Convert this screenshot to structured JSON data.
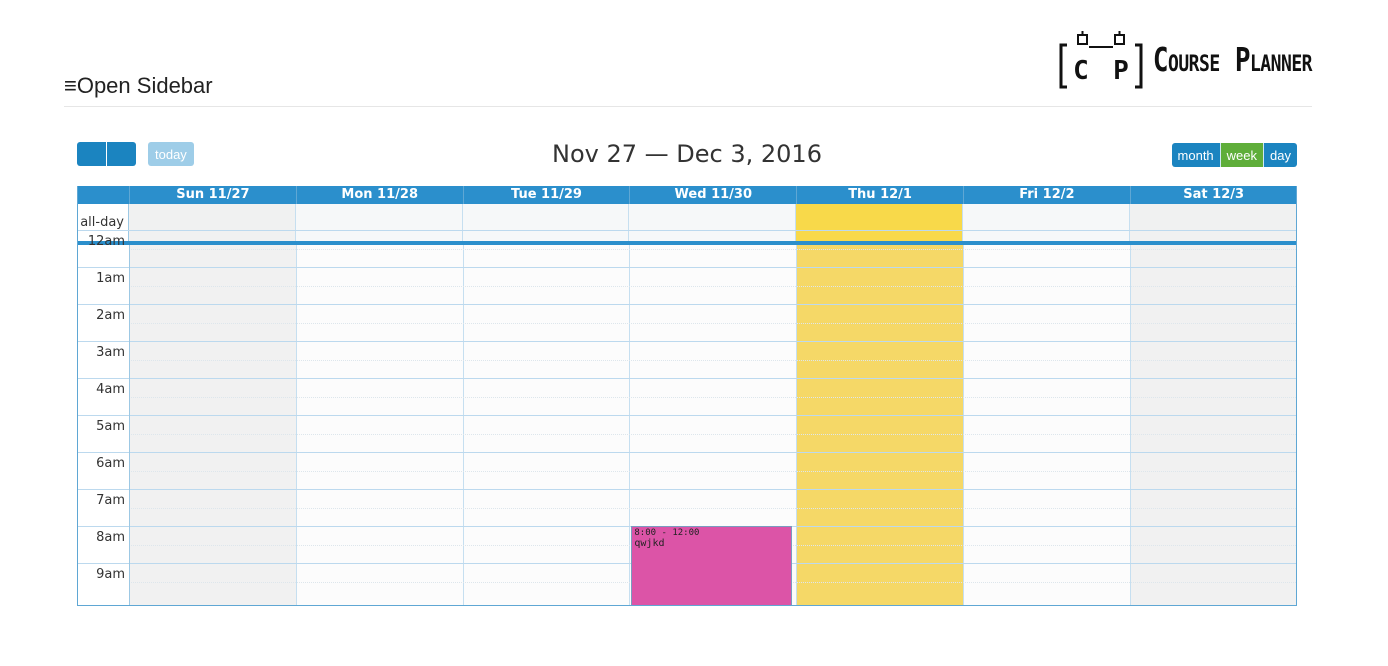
{
  "header": {
    "sidebar_toggle": "≡Open Sidebar",
    "logo_letters": "CP",
    "logo_text": "Course Planner"
  },
  "toolbar": {
    "today_label": "today",
    "title": "Nov 27 — Dec 3, 2016",
    "views": [
      "month",
      "week",
      "day"
    ],
    "active_view": "week"
  },
  "calendar": {
    "days": [
      "Sun 11/27",
      "Mon 11/28",
      "Tue 11/29",
      "Wed 11/30",
      "Thu 12/1",
      "Fri 12/2",
      "Sat 12/3"
    ],
    "today_index": 4,
    "allday_label": "all-day",
    "time_labels": [
      "12am",
      "1am",
      "2am",
      "3am",
      "4am",
      "5am",
      "6am",
      "7am",
      "8am",
      "9am"
    ],
    "events": [
      {
        "day": "Wed 11/30",
        "time": "8:00 - 12:00",
        "title": "qwjkd",
        "start_hour": 8,
        "end_hour": 12,
        "color": "#dc54a7"
      }
    ]
  },
  "colors": {
    "primary": "#1b84c0",
    "header_bar": "#2b8fcc",
    "active_view": "#5fae3a",
    "today_highlight": "#f8d94a",
    "event": "#dc54a7"
  }
}
